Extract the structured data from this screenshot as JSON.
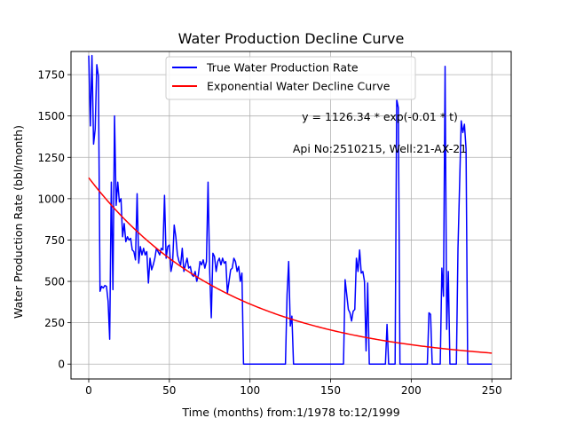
{
  "chart_data": {
    "type": "line",
    "title": "Water Production Decline Curve",
    "xlabel": "Time (months) from:1/1978 to:12/1999",
    "ylabel": "Water Production Rate (bbl/month)",
    "xlim": [
      -11,
      262
    ],
    "ylim": [
      -90,
      1890
    ],
    "x_ticks": [
      0,
      50,
      100,
      150,
      200,
      250
    ],
    "y_ticks": [
      0,
      250,
      500,
      750,
      1000,
      1250,
      1500,
      1750
    ],
    "grid": true,
    "legend": "top-center",
    "annotations": [
      {
        "text": "y = 1126.34 * exp(-0.01 * t)"
      },
      {
        "text": "Api No:2510215, Well:21-AX-21"
      }
    ],
    "series": [
      {
        "name": "True Water Production Rate",
        "color": "#0000ff",
        "points": [
          [
            0,
            1865
          ],
          [
            1,
            1440
          ],
          [
            2,
            1865
          ],
          [
            3,
            1330
          ],
          [
            4,
            1420
          ],
          [
            5,
            1810
          ],
          [
            6,
            1740
          ],
          [
            7,
            440
          ],
          [
            8,
            470
          ],
          [
            9,
            460
          ],
          [
            10,
            475
          ],
          [
            11,
            470
          ],
          [
            12,
            380
          ],
          [
            13,
            150
          ],
          [
            14,
            1100
          ],
          [
            15,
            450
          ],
          [
            16,
            1500
          ],
          [
            17,
            960
          ],
          [
            18,
            1100
          ],
          [
            19,
            980
          ],
          [
            20,
            1000
          ],
          [
            21,
            770
          ],
          [
            22,
            850
          ],
          [
            23,
            740
          ],
          [
            24,
            770
          ],
          [
            25,
            750
          ],
          [
            26,
            760
          ],
          [
            27,
            690
          ],
          [
            28,
            680
          ],
          [
            29,
            630
          ],
          [
            30,
            1030
          ],
          [
            31,
            610
          ],
          [
            32,
            710
          ],
          [
            33,
            660
          ],
          [
            34,
            700
          ],
          [
            35,
            660
          ],
          [
            36,
            680
          ],
          [
            37,
            490
          ],
          [
            38,
            640
          ],
          [
            39,
            570
          ],
          [
            40,
            600
          ],
          [
            41,
            640
          ],
          [
            42,
            700
          ],
          [
            43,
            680
          ],
          [
            44,
            660
          ],
          [
            45,
            700
          ],
          [
            46,
            690
          ],
          [
            47,
            1020
          ],
          [
            48,
            640
          ],
          [
            49,
            710
          ],
          [
            50,
            720
          ],
          [
            51,
            560
          ],
          [
            52,
            610
          ],
          [
            53,
            840
          ],
          [
            54,
            770
          ],
          [
            55,
            660
          ],
          [
            56,
            620
          ],
          [
            57,
            600
          ],
          [
            58,
            700
          ],
          [
            59,
            560
          ],
          [
            60,
            600
          ],
          [
            61,
            640
          ],
          [
            62,
            580
          ],
          [
            63,
            590
          ],
          [
            64,
            540
          ],
          [
            65,
            530
          ],
          [
            66,
            560
          ],
          [
            67,
            500
          ],
          [
            68,
            540
          ],
          [
            69,
            620
          ],
          [
            70,
            600
          ],
          [
            71,
            630
          ],
          [
            72,
            580
          ],
          [
            73,
            620
          ],
          [
            74,
            1100
          ],
          [
            75,
            560
          ],
          [
            76,
            280
          ],
          [
            77,
            670
          ],
          [
            78,
            650
          ],
          [
            79,
            560
          ],
          [
            80,
            620
          ],
          [
            81,
            640
          ],
          [
            82,
            600
          ],
          [
            83,
            640
          ],
          [
            84,
            610
          ],
          [
            85,
            620
          ],
          [
            86,
            430
          ],
          [
            87,
            500
          ],
          [
            88,
            570
          ],
          [
            89,
            580
          ],
          [
            90,
            640
          ],
          [
            91,
            620
          ],
          [
            92,
            560
          ],
          [
            93,
            590
          ],
          [
            94,
            500
          ],
          [
            95,
            550
          ],
          [
            96,
            0
          ],
          [
            97,
            0
          ],
          [
            100,
            0
          ],
          [
            110,
            0
          ],
          [
            120,
            0
          ],
          [
            122,
            0
          ],
          [
            123,
            420
          ],
          [
            124,
            620
          ],
          [
            125,
            230
          ],
          [
            126,
            290
          ],
          [
            127,
            0
          ],
          [
            130,
            0
          ],
          [
            140,
            0
          ],
          [
            150,
            0
          ],
          [
            158,
            0
          ],
          [
            159,
            510
          ],
          [
            160,
            420
          ],
          [
            161,
            330
          ],
          [
            162,
            310
          ],
          [
            163,
            260
          ],
          [
            164,
            320
          ],
          [
            165,
            330
          ],
          [
            166,
            640
          ],
          [
            167,
            560
          ],
          [
            168,
            690
          ],
          [
            169,
            550
          ],
          [
            170,
            560
          ],
          [
            171,
            500
          ],
          [
            172,
            80
          ],
          [
            173,
            490
          ],
          [
            174,
            0
          ],
          [
            180,
            0
          ],
          [
            184,
            0
          ],
          [
            185,
            240
          ],
          [
            186,
            0
          ],
          [
            190,
            0
          ],
          [
            191,
            1600
          ],
          [
            192,
            1550
          ],
          [
            193,
            0
          ],
          [
            195,
            0
          ],
          [
            200,
            0
          ],
          [
            205,
            0
          ],
          [
            210,
            0
          ],
          [
            211,
            310
          ],
          [
            212,
            300
          ],
          [
            213,
            0
          ],
          [
            218,
            0
          ],
          [
            219,
            580
          ],
          [
            220,
            410
          ],
          [
            221,
            1800
          ],
          [
            222,
            210
          ],
          [
            223,
            560
          ],
          [
            224,
            0
          ],
          [
            228,
            0
          ],
          [
            229,
            700
          ],
          [
            231,
            1470
          ],
          [
            232,
            1400
          ],
          [
            233,
            1450
          ],
          [
            234,
            1300
          ],
          [
            235,
            0
          ],
          [
            240,
            0
          ],
          [
            245,
            0
          ],
          [
            250,
            0
          ]
        ]
      },
      {
        "name": "Exponential Water Decline Curve",
        "color": "#ff0000",
        "equation": {
          "a": 1126.34,
          "b": 0.01132
        },
        "x_range": [
          0,
          250
        ]
      }
    ]
  }
}
